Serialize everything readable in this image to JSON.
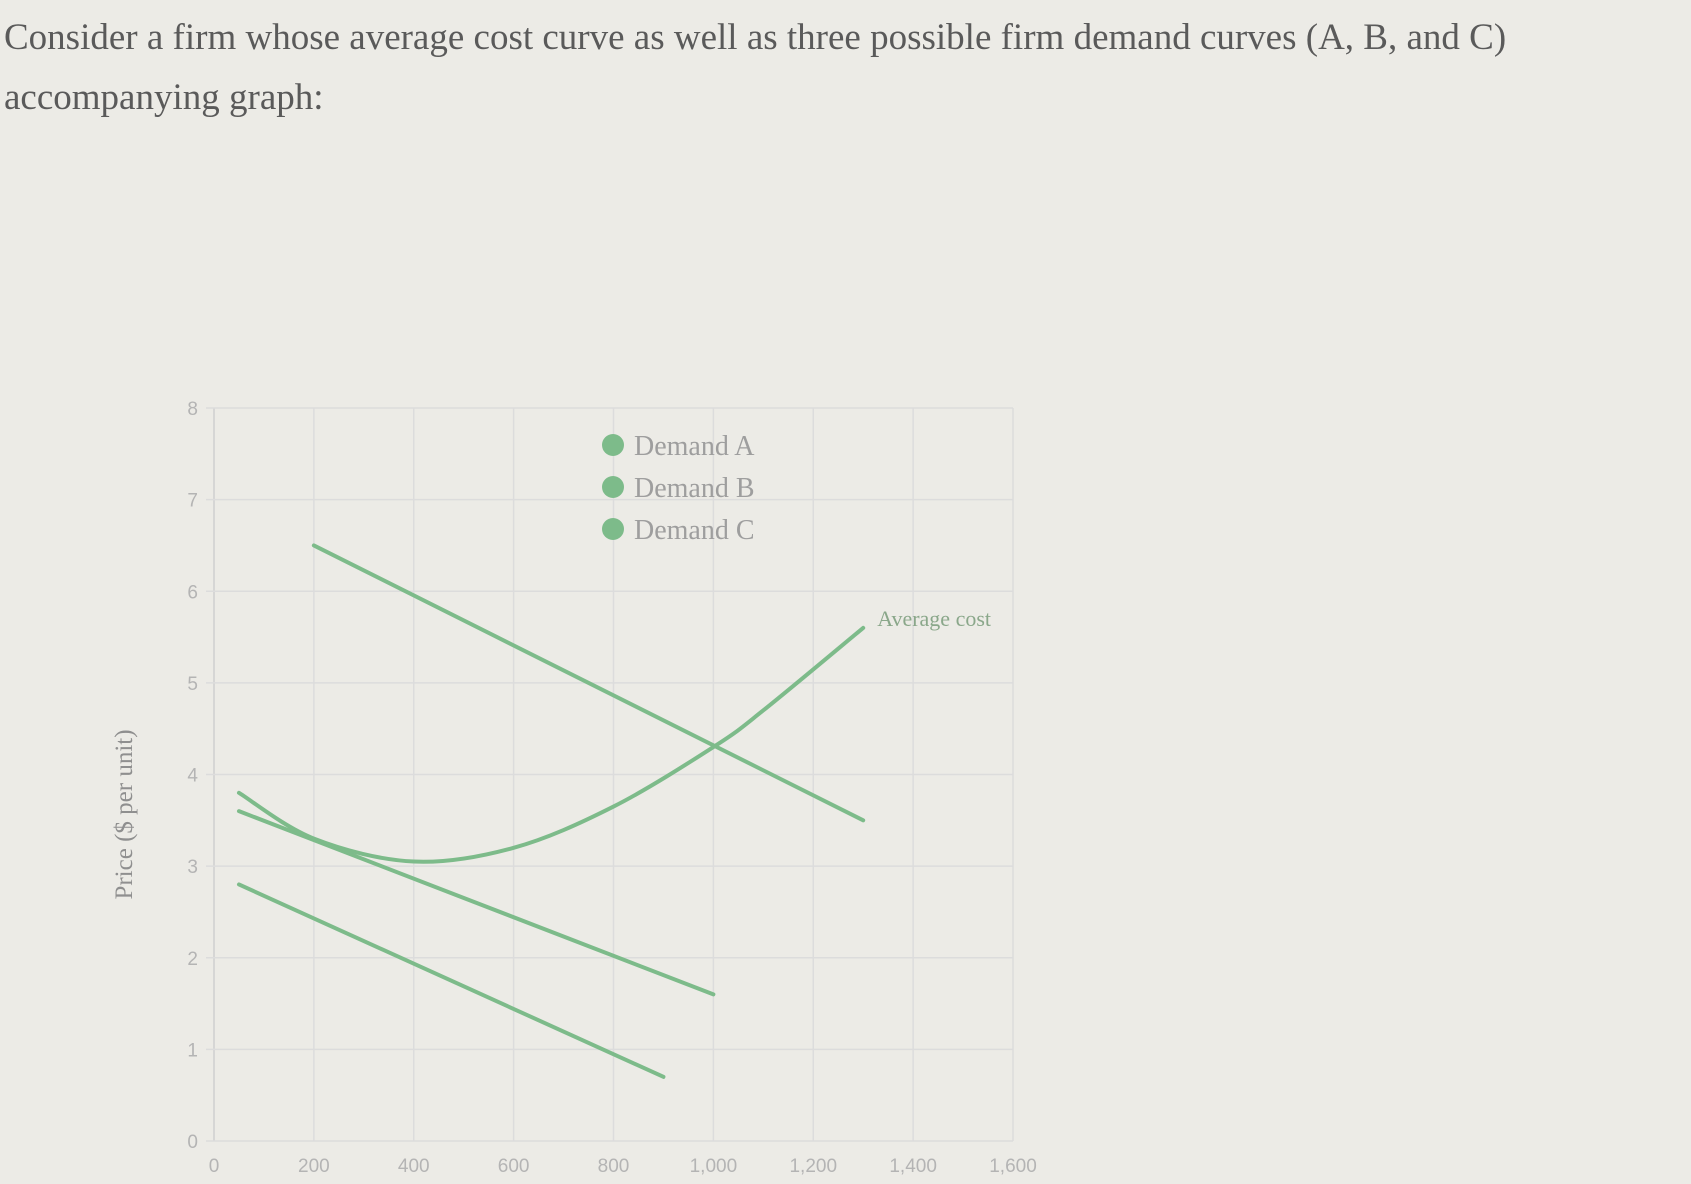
{
  "question": {
    "text": "Consider a firm whose average cost curve as well as three possible firm demand curves (A, B, and C) accompanying graph:"
  },
  "colors": {
    "curve": "#7dbb8a",
    "grid": "#dcdcdc",
    "axis": "#cfcfcf"
  },
  "chart_data": {
    "type": "line",
    "title": "",
    "xlabel": "",
    "ylabel": "Price ($ per unit)",
    "xlim": [
      0,
      1600
    ],
    "ylim": [
      0,
      8
    ],
    "x_ticks": [
      "0",
      "200",
      "400",
      "600",
      "800",
      "1,000",
      "1,200",
      "1,400",
      "1,600"
    ],
    "y_ticks": [
      "0",
      "1",
      "2",
      "3",
      "4",
      "5",
      "6",
      "7",
      "8"
    ],
    "grid": true,
    "legend_position": "top-center",
    "legend": [
      "Demand A",
      "Demand B",
      "Demand C"
    ],
    "series": [
      {
        "name": "Demand A",
        "x": [
          200,
          1300
        ],
        "y": [
          6.5,
          3.5
        ]
      },
      {
        "name": "Demand B",
        "x": [
          50,
          1000
        ],
        "y": [
          3.6,
          1.6
        ]
      },
      {
        "name": "Demand C",
        "x": [
          50,
          900
        ],
        "y": [
          2.8,
          0.7
        ]
      },
      {
        "name": "Average cost",
        "x": [
          50,
          200,
          400,
          600,
          800,
          1000,
          1100,
          1300
        ],
        "y": [
          3.8,
          3.3,
          3.05,
          3.2,
          3.65,
          4.3,
          4.7,
          5.6
        ]
      }
    ],
    "annotations": [
      "Average cost"
    ]
  }
}
